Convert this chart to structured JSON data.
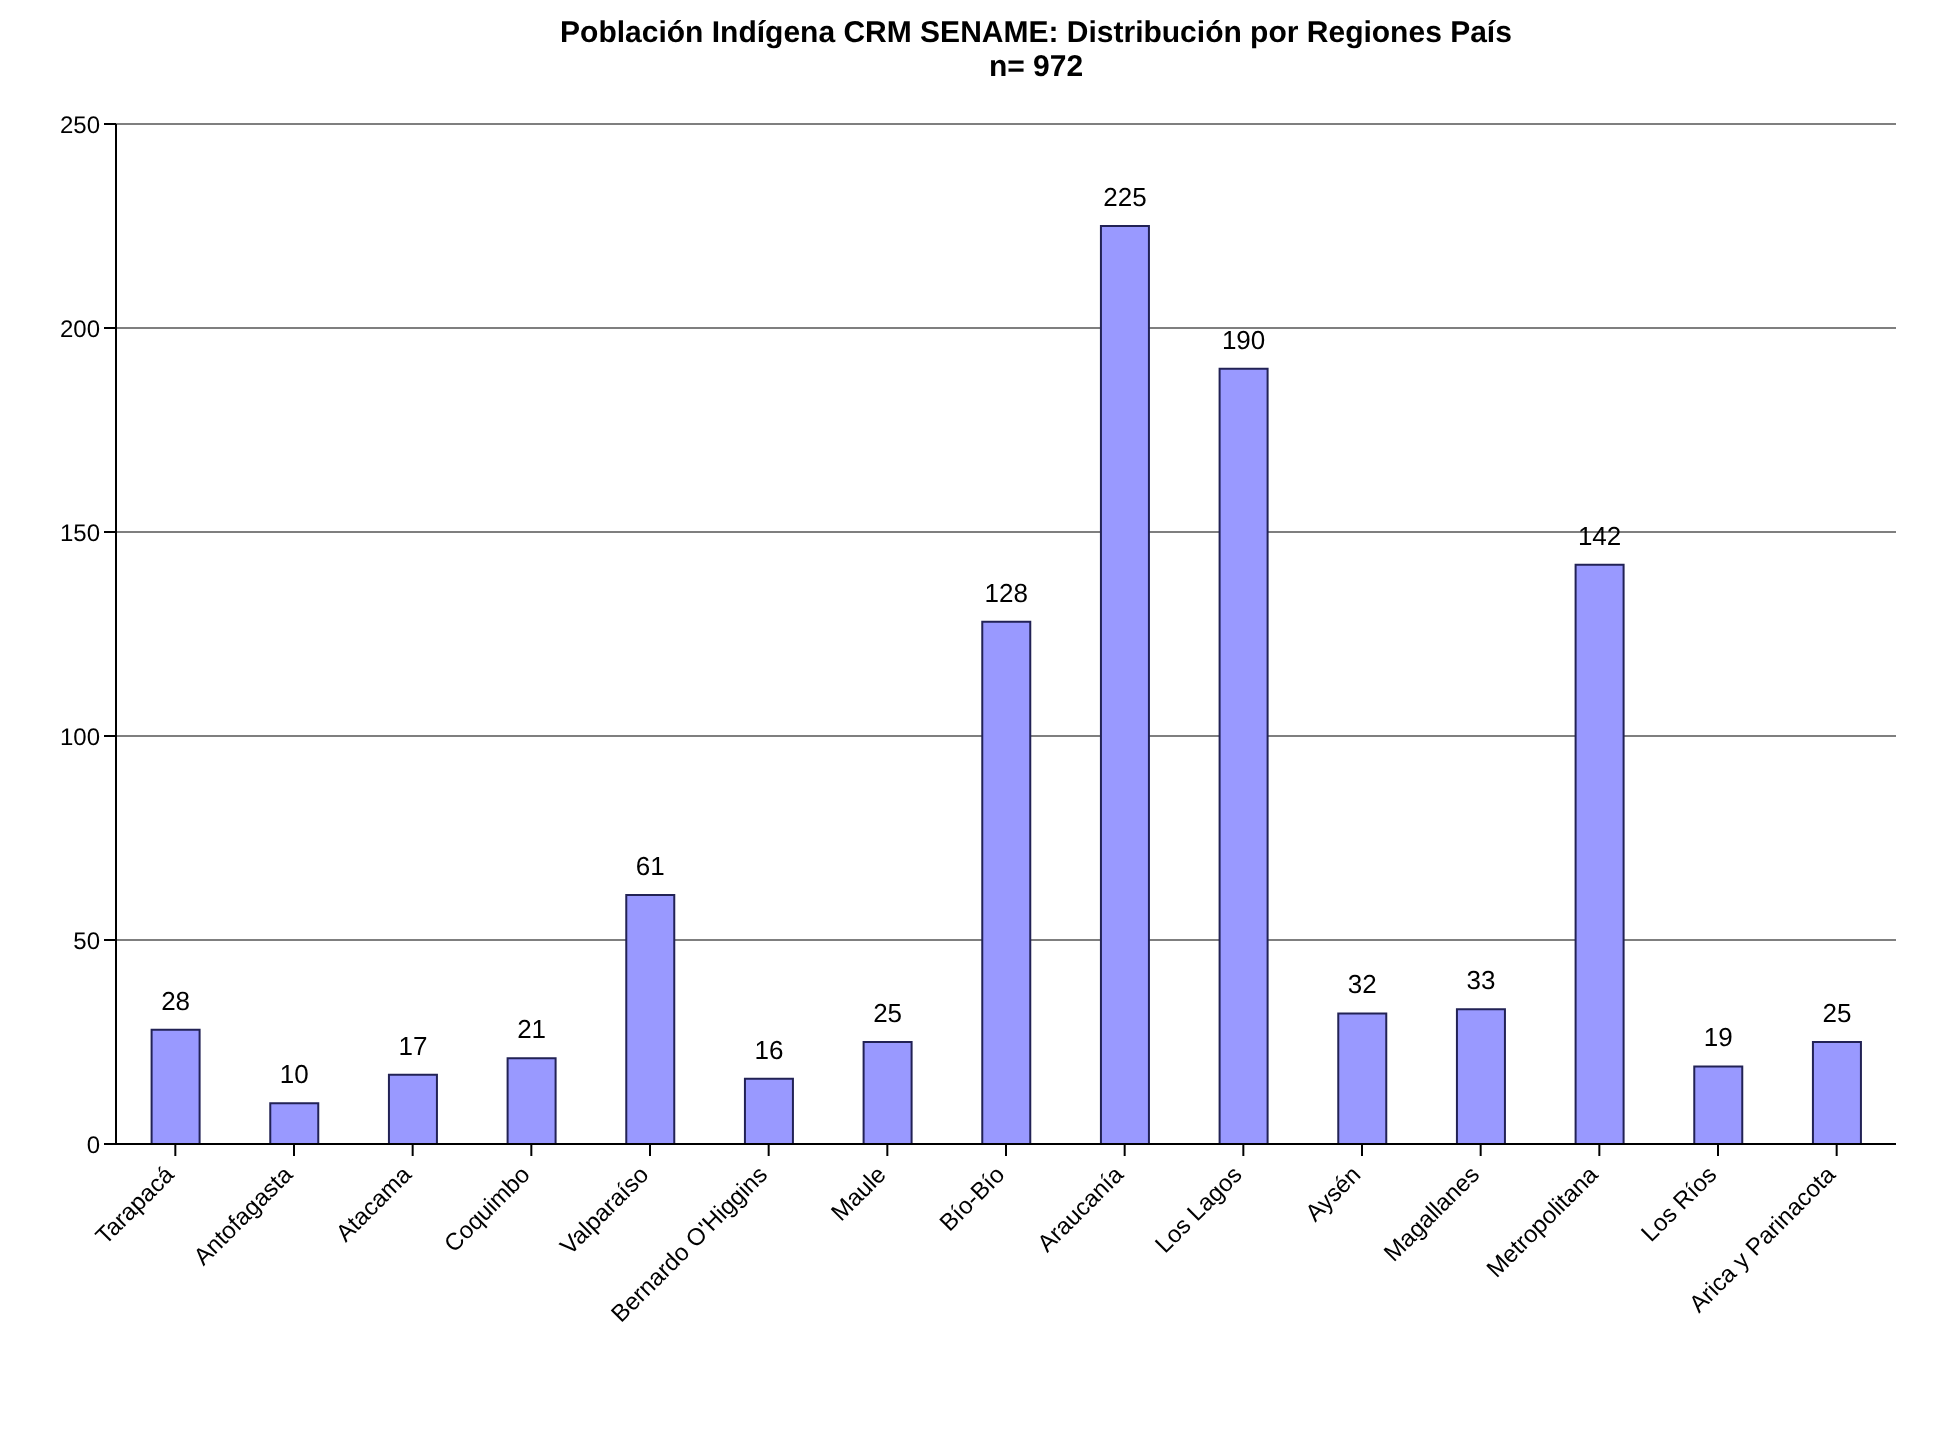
{
  "chart_data": {
    "type": "bar",
    "title": "Población Indígena CRM SENAME: Distribución por Regiones País",
    "subtitle": "n= 972",
    "categories": [
      "Tarapacá",
      "Antofagasta",
      "Atacama",
      "Coquimbo",
      "Valparaíso",
      "Bernardo O'Higgins",
      "Maule",
      "Bío-Bío",
      "Araucanía",
      "Los Lagos",
      "Aysén",
      "Magallanes",
      "Metropolitana",
      "Los Ríos",
      "Arica y Parinacota"
    ],
    "values": [
      28,
      10,
      17,
      21,
      61,
      16,
      25,
      128,
      225,
      190,
      32,
      33,
      142,
      19,
      25
    ],
    "color": "#9999ff",
    "ylim": [
      0,
      250
    ],
    "yticks": [
      0,
      50,
      100,
      150,
      200,
      250
    ],
    "grid": "y",
    "data_labels": true
  }
}
